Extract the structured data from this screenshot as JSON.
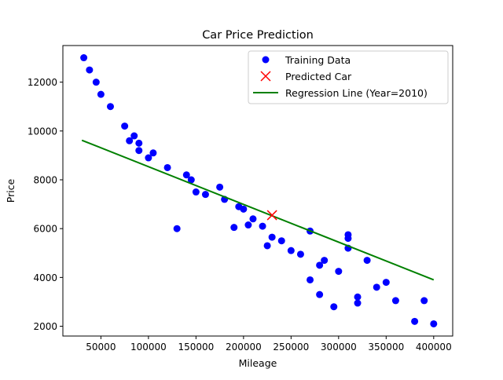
{
  "chart_data": {
    "type": "scatter",
    "title": "Car Price Prediction",
    "xlabel": "Mileage",
    "ylabel": "Price",
    "xlim": [
      10000,
      420000
    ],
    "ylim": [
      1600,
      13500
    ],
    "grid": false,
    "legend_position": "top-right",
    "xticks": [
      {
        "value": 50000,
        "label": "50000"
      },
      {
        "value": 100000,
        "label": "100000"
      },
      {
        "value": 150000,
        "label": "150000"
      },
      {
        "value": 200000,
        "label": "200000"
      },
      {
        "value": 250000,
        "label": "250000"
      },
      {
        "value": 300000,
        "label": "300000"
      },
      {
        "value": 350000,
        "label": "350000"
      },
      {
        "value": 400000,
        "label": "400000"
      }
    ],
    "yticks": [
      {
        "value": 2000,
        "label": "2000"
      },
      {
        "value": 4000,
        "label": "4000"
      },
      {
        "value": 6000,
        "label": "6000"
      },
      {
        "value": 8000,
        "label": "8000"
      },
      {
        "value": 10000,
        "label": "10000"
      },
      {
        "value": 12000,
        "label": "12000"
      }
    ],
    "series": [
      {
        "name": "Training Data",
        "kind": "scatter",
        "color": "#0000ff",
        "points": [
          [
            32000,
            13000
          ],
          [
            38000,
            12500
          ],
          [
            45000,
            12000
          ],
          [
            50000,
            11500
          ],
          [
            60000,
            11000
          ],
          [
            75000,
            10200
          ],
          [
            80000,
            9600
          ],
          [
            85000,
            9800
          ],
          [
            90000,
            9500
          ],
          [
            90000,
            9200
          ],
          [
            100000,
            8900
          ],
          [
            105000,
            9100
          ],
          [
            120000,
            8500
          ],
          [
            130000,
            6000
          ],
          [
            140000,
            8200
          ],
          [
            145000,
            8000
          ],
          [
            150000,
            7500
          ],
          [
            160000,
            7400
          ],
          [
            175000,
            7700
          ],
          [
            180000,
            7200
          ],
          [
            190000,
            6050
          ],
          [
            195000,
            6900
          ],
          [
            200000,
            6800
          ],
          [
            205000,
            6150
          ],
          [
            210000,
            6400
          ],
          [
            220000,
            6100
          ],
          [
            225000,
            5300
          ],
          [
            230000,
            5650
          ],
          [
            240000,
            5500
          ],
          [
            250000,
            5100
          ],
          [
            260000,
            4950
          ],
          [
            270000,
            5900
          ],
          [
            270000,
            3900
          ],
          [
            280000,
            4500
          ],
          [
            280000,
            3300
          ],
          [
            285000,
            4700
          ],
          [
            295000,
            2800
          ],
          [
            300000,
            4250
          ],
          [
            310000,
            5750
          ],
          [
            310000,
            5600
          ],
          [
            310000,
            5200
          ],
          [
            320000,
            3200
          ],
          [
            320000,
            2950
          ],
          [
            330000,
            4700
          ],
          [
            340000,
            3600
          ],
          [
            350000,
            3800
          ],
          [
            360000,
            3050
          ],
          [
            380000,
            2200
          ],
          [
            390000,
            3050
          ],
          [
            400000,
            2100
          ]
        ]
      },
      {
        "name": "Predicted Car",
        "kind": "marker-x",
        "color": "#ff0000",
        "points": [
          [
            230000,
            6550
          ]
        ]
      },
      {
        "name": "Regression Line (Year=2010)",
        "kind": "line",
        "color": "#008000",
        "points": [
          [
            30000,
            9620
          ],
          [
            400000,
            3900
          ]
        ]
      }
    ]
  }
}
